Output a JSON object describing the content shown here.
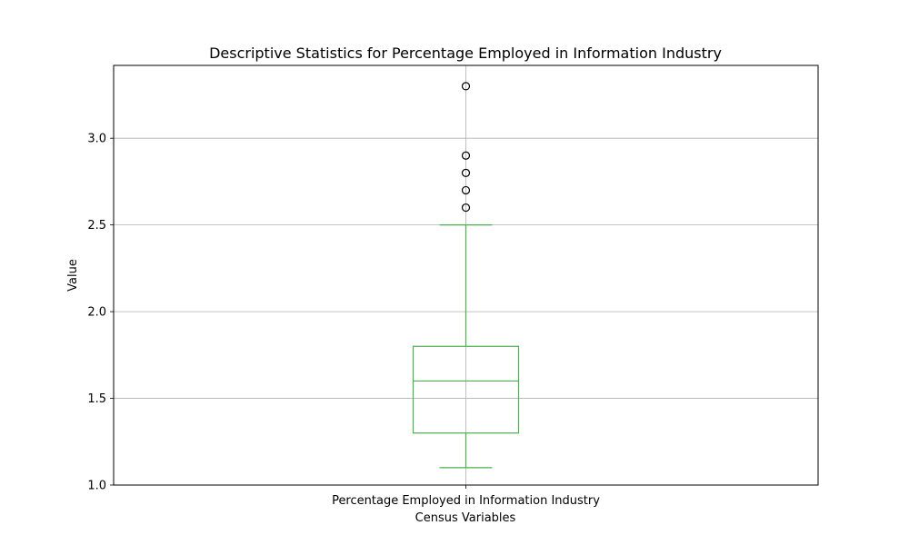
{
  "chart_data": {
    "type": "box",
    "title": "Descriptive Statistics for Percentage Employed in Information Industry",
    "xlabel": "Census Variables",
    "ylabel": "Value",
    "categories": [
      "Percentage Employed in Information Industry"
    ],
    "ylim": [
      1.0,
      3.42
    ],
    "yticks": [
      "1.0",
      "1.5",
      "2.0",
      "2.5",
      "3.0"
    ],
    "grid": true,
    "box_color": "#4caf50",
    "series": [
      {
        "whisker_low": 1.1,
        "q1": 1.3,
        "median": 1.6,
        "q3": 1.8,
        "whisker_high": 2.5,
        "outliers": [
          2.6,
          2.7,
          2.8,
          2.9,
          3.3
        ]
      }
    ]
  }
}
